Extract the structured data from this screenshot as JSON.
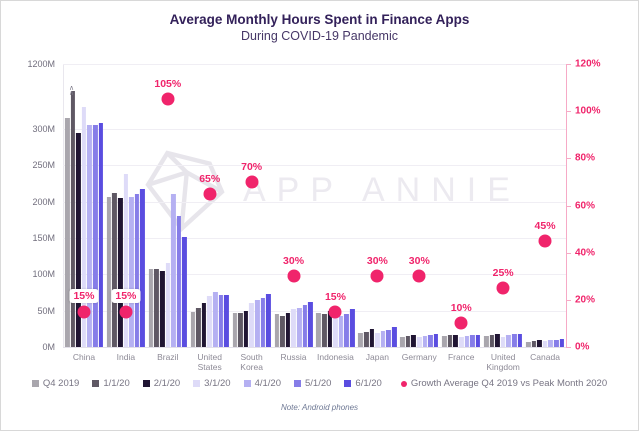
{
  "header": {
    "title": "Average Monthly Hours Spent in Finance Apps",
    "subtitle": "During COVID-19 Pandemic"
  },
  "watermark": {
    "brand": "APP ANNIE"
  },
  "note": "Note: Android phones",
  "icons": {
    "axis_break": "∧",
    "growth_dot": "●"
  },
  "colors": {
    "title": "#33215a",
    "subtitle": "#463767",
    "accent_pink": "#f0246b",
    "axis_text": "#716e7d",
    "category_text": "#8d8a96",
    "grid": "#f0eef4",
    "watermark": "#eceaf0"
  },
  "chart_data": {
    "type": "bar",
    "title": "Average Monthly Hours Spent in Finance Apps",
    "subtitle": "During COVID-19 Pandemic",
    "unit": "millions of hours (M)",
    "categories": [
      "China",
      "India",
      "Brazil",
      "United States",
      "South Korea",
      "Russia",
      "Indonesia",
      "Japan",
      "Germany",
      "France",
      "United Kingdom",
      "Canada"
    ],
    "series": [
      {
        "name": "Q4 2019",
        "color": "#a9a6ad",
        "values": [
          315,
          207,
          107,
          48,
          47,
          45,
          47,
          19,
          14,
          15,
          15,
          7
        ]
      },
      {
        "name": "1/1/20",
        "color": "#5f5864",
        "values": [
          1200,
          212,
          107,
          54,
          47,
          43,
          46,
          21,
          15,
          16,
          17,
          8
        ]
      },
      {
        "name": "2/1/20",
        "color": "#201533",
        "values": [
          295,
          205,
          104,
          60,
          50,
          47,
          49,
          25,
          16,
          17,
          18,
          9
        ]
      },
      {
        "name": "3/1/20",
        "color": "#dedbf8",
        "values": [
          330,
          238,
          115,
          70,
          61,
          52,
          44,
          19,
          14,
          14,
          14,
          8
        ]
      },
      {
        "name": "4/1/20",
        "color": "#b5b0f2",
        "values": [
          305,
          207,
          210,
          76,
          65,
          54,
          43,
          22,
          15,
          15,
          16,
          9
        ]
      },
      {
        "name": "5/1/20",
        "color": "#867de8",
        "values": [
          305,
          210,
          180,
          72,
          67,
          58,
          45,
          24,
          16,
          16,
          18,
          10
        ]
      },
      {
        "name": "6/1/20",
        "color": "#5a4de0",
        "values": [
          308,
          218,
          152,
          72,
          73,
          62,
          52,
          27,
          18,
          17,
          18,
          11
        ]
      }
    ],
    "growth": {
      "name": "Growth Average Q4 2019 vs Peak Month 2020",
      "unit": "%",
      "color": "#f0246b",
      "values": [
        15,
        15,
        105,
        65,
        70,
        30,
        15,
        30,
        30,
        10,
        25,
        45
      ],
      "boxed_labels": [
        "China",
        "India"
      ]
    },
    "left_axis": {
      "tick_labels": [
        "0M",
        "50M",
        "100M",
        "150M",
        "200M",
        "250M",
        "300M"
      ],
      "top_label": "1200M",
      "break_below_top": true,
      "max_linear": 300
    },
    "right_axis": {
      "tick_labels": [
        "0%",
        "20%",
        "40%",
        "60%",
        "80%",
        "100%",
        "120%"
      ],
      "min": 0,
      "max": 120
    },
    "axis_break": {
      "category": "China",
      "series": "1/1/20",
      "note": "bar truncated at axis break"
    },
    "grid": true,
    "legend_position": "bottom"
  },
  "legend": {
    "growth_label": "Growth Average Q4 2019 vs Peak Month 2020"
  }
}
